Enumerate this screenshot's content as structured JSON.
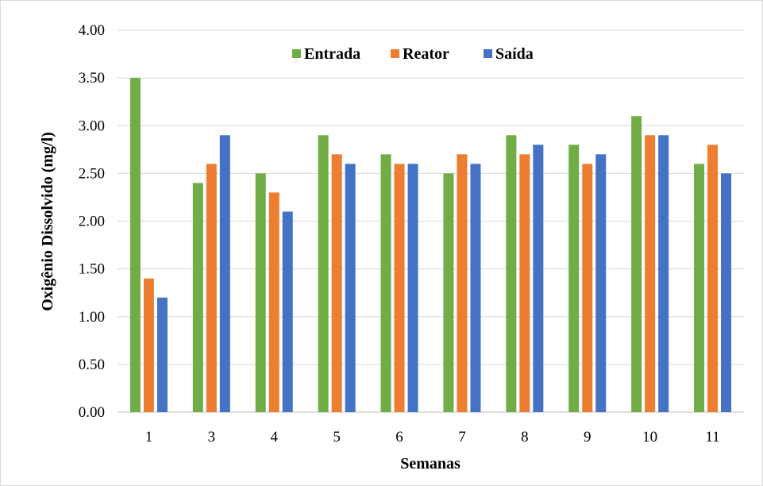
{
  "colors": {
    "background": "#ffffff",
    "gridline": "#d9d9d9",
    "frame": "#d9d9d9"
  },
  "chart_data": {
    "type": "bar",
    "title": "",
    "xlabel": "Semanas",
    "ylabel": "Oxigênio Dissolvido (mg/l)",
    "ylim": [
      0,
      4
    ],
    "y_ticks": [
      "0.00",
      "0.50",
      "1.00",
      "1.50",
      "2.00",
      "2.50",
      "3.00",
      "3.50",
      "4.00"
    ],
    "grid": true,
    "legend_position": "top-center",
    "categories": [
      "1",
      "3",
      "4",
      "5",
      "6",
      "7",
      "8",
      "9",
      "10",
      "11"
    ],
    "series": [
      {
        "name": "Entrada",
        "color": "#70ad47",
        "values": [
          3.5,
          2.4,
          2.5,
          2.9,
          2.7,
          2.5,
          2.9,
          2.8,
          3.1,
          2.6
        ]
      },
      {
        "name": "Reator",
        "color": "#ed7d31",
        "values": [
          1.4,
          2.6,
          2.3,
          2.7,
          2.6,
          2.7,
          2.7,
          2.6,
          2.9,
          2.8
        ]
      },
      {
        "name": "Saída",
        "color": "#4472c4",
        "values": [
          1.2,
          2.9,
          2.1,
          2.6,
          2.6,
          2.6,
          2.8,
          2.7,
          2.9,
          2.5
        ]
      }
    ]
  }
}
